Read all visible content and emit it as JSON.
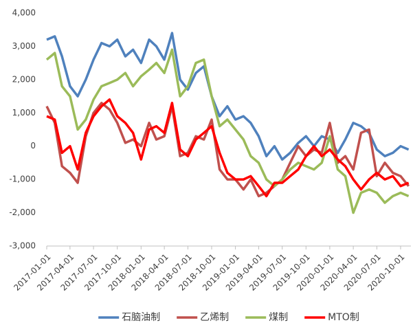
{
  "chart_data": {
    "type": "line",
    "x": [
      "2017-01-01",
      "2017-02-01",
      "2017-03-01",
      "2017-04-01",
      "2017-05-01",
      "2017-06-01",
      "2017-07-01",
      "2017-08-01",
      "2017-09-01",
      "2017-10-01",
      "2017-11-01",
      "2017-12-01",
      "2018-01-01",
      "2018-02-01",
      "2018-03-01",
      "2018-04-01",
      "2018-05-01",
      "2018-06-01",
      "2018-07-01",
      "2018-08-01",
      "2018-09-01",
      "2018-10-01",
      "2018-11-01",
      "2018-12-01",
      "2019-01-01",
      "2019-02-01",
      "2019-03-01",
      "2019-04-01",
      "2019-05-01",
      "2019-06-01",
      "2019-07-01",
      "2019-08-01",
      "2019-09-01",
      "2019-10-01",
      "2019-11-01",
      "2019-12-01",
      "2020-01-01",
      "2020-02-01",
      "2020-03-01",
      "2020-04-01",
      "2020-05-01",
      "2020-06-01",
      "2020-07-01",
      "2020-08-01",
      "2020-09-01",
      "2020-10-01",
      "2020-11-01"
    ],
    "series": [
      {
        "name": "石脑油制",
        "color": "#4f81bd",
        "values": [
          3200,
          3300,
          2700,
          1800,
          1500,
          2000,
          2600,
          3100,
          3000,
          3200,
          2700,
          2900,
          2500,
          3200,
          3000,
          2600,
          3400,
          2000,
          1700,
          2200,
          2400,
          1500,
          900,
          1200,
          800,
          900,
          700,
          300,
          -300,
          0,
          -400,
          -200,
          100,
          300,
          0,
          300,
          200,
          -200,
          200,
          700,
          600,
          400,
          -100,
          -300,
          -200,
          0,
          -100
        ]
      },
      {
        "name": "乙烯制",
        "color": "#c0504d",
        "values": [
          1200,
          700,
          -600,
          -800,
          -1100,
          300,
          1000,
          1300,
          1100,
          700,
          100,
          200,
          0,
          700,
          200,
          300,
          1200,
          -300,
          -200,
          300,
          200,
          800,
          -700,
          -1000,
          -1000,
          -1300,
          -1000,
          -1500,
          -1400,
          -1200,
          -1000,
          -500,
          0,
          -300,
          -100,
          -200,
          700,
          -500,
          -300,
          -700,
          400,
          500,
          -900,
          -500,
          -800,
          -900,
          -1200
        ]
      },
      {
        "name": "煤制",
        "color": "#9bbb59",
        "values": [
          2600,
          2800,
          1800,
          1500,
          500,
          800,
          1400,
          1800,
          1900,
          2000,
          2200,
          1800,
          2100,
          2300,
          2500,
          2200,
          2900,
          1500,
          1800,
          2500,
          2600,
          1500,
          600,
          800,
          500,
          200,
          -300,
          -500,
          -1000,
          -1200,
          -1000,
          -700,
          -500,
          -600,
          -700,
          -500,
          300,
          -700,
          -900,
          -2000,
          -1400,
          -1300,
          -1400,
          -1700,
          -1500,
          -1400,
          -1500
        ]
      },
      {
        "name": "MTO制",
        "color": "#ff0000",
        "values": [
          900,
          800,
          -200,
          0,
          -700,
          400,
          900,
          1200,
          1400,
          900,
          700,
          400,
          -400,
          500,
          600,
          400,
          1300,
          -100,
          -300,
          200,
          400,
          600,
          -200,
          -800,
          -1000,
          -1000,
          -900,
          -1200,
          -1500,
          -1100,
          -1100,
          -900,
          -700,
          -300,
          0,
          -300,
          -100,
          -400,
          -600,
          -1000,
          -1300,
          -1000,
          -800,
          -1000,
          -900,
          -1200,
          -1100
        ]
      }
    ],
    "xlim": [
      "2017-01-01",
      "2020-11-10"
    ],
    "xticks": [
      "2017-01-01",
      "2017-04-01",
      "2017-07-01",
      "2017-10-01",
      "2018-01-01",
      "2018-04-01",
      "2018-07-01",
      "2018-10-01",
      "2019-01-01",
      "2019-04-01",
      "2019-07-01",
      "2019-10-01",
      "2020-01-01",
      "2020-04-01",
      "2020-07-01",
      "2020-10-01"
    ],
    "ylim": [
      -3000,
      4000
    ],
    "yticks": [
      {
        "value": -3000,
        "label": "-3,000"
      },
      {
        "value": -2000,
        "label": "-2,000"
      },
      {
        "value": -1000,
        "label": "-1,000"
      },
      0,
      {
        "value": 1000,
        "label": "1,000"
      },
      {
        "value": 2000,
        "label": "2,000"
      },
      {
        "value": 3000,
        "label": "3,000"
      },
      {
        "value": 4000,
        "label": "4,000"
      }
    ],
    "grid": false,
    "legend": "bottom"
  }
}
